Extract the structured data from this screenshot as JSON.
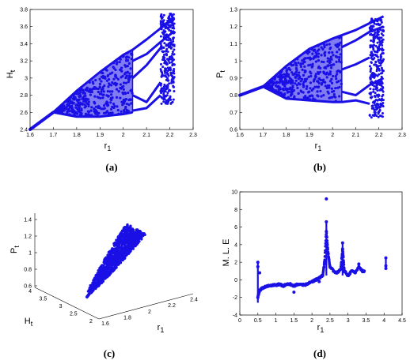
{
  "colors": {
    "series": "#1a10e6",
    "axis": "#000000"
  },
  "chart_data": [
    {
      "id": "a",
      "type": "scatter",
      "caption": "(a)",
      "xlabel": "r",
      "xlabel_sub": "1",
      "ylabel": "H",
      "ylabel_sub": "t",
      "xlim": [
        1.6,
        2.3
      ],
      "ylim": [
        2.4,
        3.8
      ],
      "xticks": [
        1.6,
        1.7,
        1.8,
        1.9,
        2.0,
        2.1,
        2.2,
        2.3
      ],
      "xticklabels": [
        "1.6",
        "1.7",
        "1.8",
        "1.9",
        "2",
        "2.1",
        "2.2",
        "2.3"
      ],
      "yticks": [
        2.4,
        2.6,
        2.8,
        3.0,
        3.2,
        3.4,
        3.6,
        3.8
      ],
      "yticklabels": [
        "2.4",
        "2.6",
        "2.8",
        "3",
        "3.2",
        "3.4",
        "3.6",
        "3.8"
      ],
      "stable_branch": {
        "x": [
          1.6,
          1.7
        ],
        "y": [
          2.4,
          2.6
        ]
      },
      "chaotic_band_upper": {
        "x": [
          1.7,
          1.8,
          1.9,
          2.0,
          2.04
        ],
        "y": [
          2.6,
          2.85,
          3.07,
          3.27,
          3.33
        ]
      },
      "chaotic_band_lower": {
        "x": [
          1.7,
          1.8,
          1.9,
          2.0,
          2.04
        ],
        "y": [
          2.6,
          2.55,
          2.55,
          2.58,
          2.6
        ]
      },
      "period_branches": [
        {
          "x": [
            2.04,
            2.1,
            2.16,
            2.22
          ],
          "y": [
            3.33,
            3.45,
            3.58,
            3.7
          ]
        },
        {
          "x": [
            2.04,
            2.1,
            2.16,
            2.22
          ],
          "y": [
            3.2,
            3.28,
            3.42,
            3.55
          ]
        },
        {
          "x": [
            2.04,
            2.1,
            2.16
          ],
          "y": [
            3.0,
            3.15,
            3.35
          ]
        },
        {
          "x": [
            2.04,
            2.1,
            2.16
          ],
          "y": [
            2.8,
            2.72,
            2.95
          ]
        },
        {
          "x": [
            2.04,
            2.1,
            2.16
          ],
          "y": [
            2.62,
            2.65,
            2.8
          ]
        }
      ],
      "chaos_region": {
        "x": [
          2.16,
          2.22
        ],
        "y": [
          2.7,
          3.75
        ]
      }
    },
    {
      "id": "b",
      "type": "scatter",
      "caption": "(b)",
      "xlabel": "r",
      "xlabel_sub": "1",
      "ylabel": "P",
      "ylabel_sub": "t",
      "xlim": [
        1.6,
        2.3
      ],
      "ylim": [
        0.6,
        1.3
      ],
      "xticks": [
        1.6,
        1.7,
        1.8,
        1.9,
        2.0,
        2.1,
        2.2,
        2.3
      ],
      "xticklabels": [
        "1.6",
        "1.7",
        "1.8",
        "1.9",
        "2",
        "2.1",
        "2.2",
        "2.3"
      ],
      "yticks": [
        0.6,
        0.7,
        0.8,
        0.9,
        1.0,
        1.1,
        1.2,
        1.3
      ],
      "yticklabels": [
        "0.6",
        "0.7",
        "0.8",
        "0.9",
        "1",
        "1.1",
        "1.2",
        "1.3"
      ],
      "stable_branch": {
        "x": [
          1.6,
          1.7
        ],
        "y": [
          0.8,
          0.85
        ]
      },
      "chaotic_band_upper": {
        "x": [
          1.7,
          1.8,
          1.9,
          2.0,
          2.04
        ],
        "y": [
          0.85,
          0.97,
          1.07,
          1.13,
          1.15
        ]
      },
      "chaotic_band_lower": {
        "x": [
          1.7,
          1.8,
          1.9,
          2.0,
          2.04
        ],
        "y": [
          0.85,
          0.78,
          0.77,
          0.76,
          0.76
        ]
      },
      "period_branches": [
        {
          "x": [
            2.04,
            2.1,
            2.16,
            2.22
          ],
          "y": [
            1.15,
            1.18,
            1.22,
            1.26
          ]
        },
        {
          "x": [
            2.04,
            2.1,
            2.16,
            2.22
          ],
          "y": [
            1.08,
            1.12,
            1.17,
            1.2
          ]
        },
        {
          "x": [
            2.04,
            2.1,
            2.16
          ],
          "y": [
            0.95,
            0.98,
            1.02
          ]
        },
        {
          "x": [
            2.04,
            2.1,
            2.16,
            2.22
          ],
          "y": [
            0.82,
            0.8,
            0.86,
            0.9
          ]
        },
        {
          "x": [
            2.04,
            2.1,
            2.16
          ],
          "y": [
            0.76,
            0.77,
            0.75
          ]
        }
      ],
      "chaos_region": {
        "x": [
          2.16,
          2.22
        ],
        "y": [
          0.67,
          1.25
        ]
      }
    },
    {
      "id": "c",
      "type": "scatter3d",
      "caption": "(c)",
      "xlabel": "r",
      "xlabel_sub": "1",
      "ylabel": "H",
      "ylabel_sub": "t",
      "zlabel": "P",
      "zlabel_sub": "t",
      "xticklabels": [
        "1.6",
        "1.8",
        "2",
        "2.2",
        "2.4"
      ],
      "yticklabels": [
        "2",
        "2.5",
        "3",
        "3.5",
        "4"
      ],
      "zticklabels": [
        "0.6",
        "0.8",
        "1",
        "1.2",
        "1.4"
      ]
    },
    {
      "id": "d",
      "type": "scatter",
      "caption": "(d)",
      "xlabel": "r",
      "xlabel_sub": "1",
      "ylabel": "M. L. E",
      "xlim": [
        0,
        4.5
      ],
      "ylim": [
        -4,
        10
      ],
      "xticks": [
        0,
        0.5,
        1,
        1.5,
        2,
        2.5,
        3,
        3.5,
        4,
        4.5
      ],
      "xticklabels": [
        "0",
        "0.5",
        "1",
        "1.5",
        "2",
        "2.5",
        "3",
        "3.5",
        "4",
        "4.5"
      ],
      "yticks": [
        -4,
        -2,
        0,
        2,
        4,
        6,
        8,
        10
      ],
      "yticklabels": [
        "-4",
        "-2",
        "0",
        "2",
        "4",
        "6",
        "8",
        "10"
      ],
      "series_x": [
        0.5,
        0.55,
        0.6,
        0.7,
        0.8,
        0.9,
        1.0,
        1.1,
        1.2,
        1.3,
        1.4,
        1.5,
        1.6,
        1.7,
        1.8,
        1.9,
        2.0,
        2.1,
        2.2,
        2.3,
        2.35,
        2.4,
        2.45,
        2.5,
        2.6,
        2.7,
        2.8,
        2.85,
        2.9,
        3.0,
        3.1,
        3.2,
        3.3,
        3.4,
        3.45
      ],
      "series_y": [
        -2.0,
        -1.2,
        -1.0,
        -0.8,
        -0.7,
        -0.6,
        -0.6,
        -0.5,
        -0.7,
        -0.5,
        -0.5,
        -0.7,
        -0.5,
        -0.5,
        -0.6,
        -0.4,
        -0.2,
        0.0,
        0.2,
        0.5,
        2.0,
        5.5,
        3.0,
        1.5,
        1.0,
        0.8,
        1.2,
        3.5,
        1.0,
        0.5,
        1.0,
        0.8,
        1.5,
        1.0,
        1.0
      ],
      "outliers": [
        {
          "x": 2.4,
          "y": 9.2
        },
        {
          "x": 2.4,
          "y": 6.6
        },
        {
          "x": 2.85,
          "y": 4.2
        },
        {
          "x": 0.5,
          "y": 2.0
        },
        {
          "x": 0.5,
          "y": 1.5
        },
        {
          "x": 0.55,
          "y": 0.8
        },
        {
          "x": 4.05,
          "y": 2.5
        },
        {
          "x": 4.05,
          "y": 1.6
        },
        {
          "x": 4.05,
          "y": 1.3
        },
        {
          "x": 3.3,
          "y": 1.8
        },
        {
          "x": 2.2,
          "y": -0.2
        },
        {
          "x": 1.5,
          "y": -1.4
        }
      ]
    }
  ]
}
